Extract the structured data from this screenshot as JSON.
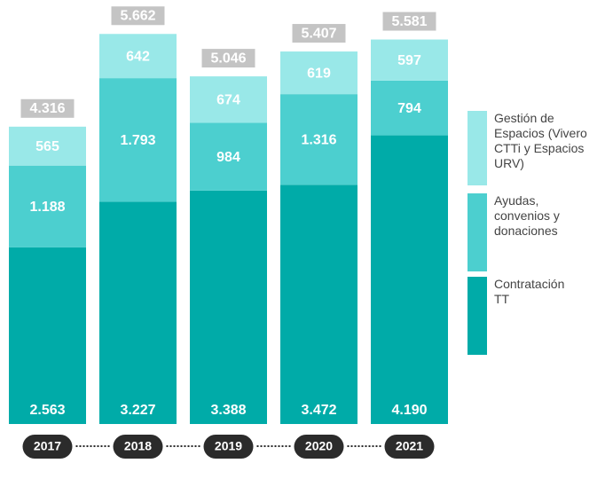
{
  "chart_data": {
    "type": "stacked-bar",
    "categories": [
      "2017",
      "2018",
      "2019",
      "2020",
      "2021"
    ],
    "series": [
      {
        "name": "Contratación TT",
        "color": "#00aba8",
        "values": [
          2563,
          3227,
          3388,
          3472,
          4190
        ],
        "value_labels": [
          "2.563",
          "3.227",
          "3.388",
          "3.472",
          "4.190"
        ]
      },
      {
        "name": "Ayudas, convenios y donaciones",
        "color": "#4ccfcf",
        "values": [
          1188,
          1793,
          984,
          1316,
          794
        ],
        "value_labels": [
          "1.188",
          "1.793",
          "984",
          "1.316",
          "794"
        ]
      },
      {
        "name": "Gestión de Espacios (Vivero CTTi y Espacios URV)",
        "color": "#99e8e8",
        "values": [
          565,
          642,
          674,
          619,
          597
        ],
        "value_labels": [
          "565",
          "642",
          "674",
          "619",
          "597"
        ]
      }
    ],
    "totals": {
      "values": [
        4316,
        5662,
        5046,
        5407,
        5581
      ],
      "value_labels": [
        "4.316",
        "5.662",
        "5.046",
        "5.407",
        "5.581"
      ],
      "color": "#c4c4c4"
    },
    "ylim": [
      0,
      6000
    ]
  }
}
